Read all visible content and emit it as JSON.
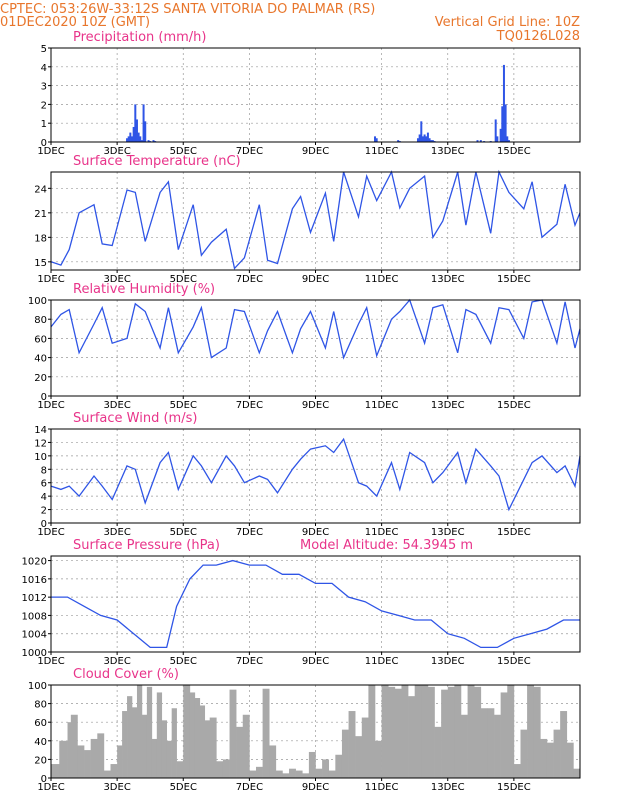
{
  "header": {
    "line1": "CPTEC:   053:26W-33:12S   SANTA VITORIA DO PALMAR (RS)",
    "date": "01DEC2020  10Z  (GMT)",
    "grid_note": "Vertical Grid Line: 10Z",
    "code": "TQ0126L028",
    "colors": {
      "header": "#e8762c",
      "panel_title": "#e8348a",
      "line": "#2f55e6",
      "cloud": "#a9a9a9"
    }
  },
  "chart_data": [
    {
      "type": "bar",
      "title": "Precipitation (mm/h)",
      "ylim": [
        0,
        5
      ],
      "yticks": [
        0,
        1,
        2,
        3,
        4,
        5
      ],
      "xticks": [
        "1DEC",
        "3DEC",
        "5DEC",
        "7DEC",
        "9DEC",
        "11DEC",
        "13DEC",
        "15DEC"
      ],
      "x": [
        2.3,
        2.35,
        2.4,
        2.45,
        2.5,
        2.55,
        2.6,
        2.65,
        2.7,
        2.75,
        2.8,
        2.85,
        2.95,
        3.0,
        3.1,
        3.15,
        9.8,
        9.85,
        10.5,
        10.55,
        11.1,
        11.15,
        11.2,
        11.25,
        11.3,
        11.35,
        11.4,
        11.45,
        11.5,
        11.55,
        11.6,
        12.9,
        13.0,
        13.1,
        13.3,
        13.45,
        13.5,
        13.6,
        13.65,
        13.7,
        13.75,
        13.8,
        13.85
      ],
      "values": [
        0.2,
        0.3,
        0.5,
        0.3,
        0.8,
        2.0,
        1.2,
        0.5,
        0.3,
        0.1,
        2.0,
        1.1,
        0.1,
        0.05,
        0.1,
        0.05,
        0.3,
        0.2,
        0.1,
        0.05,
        0.2,
        0.4,
        1.1,
        0.3,
        0.4,
        0.3,
        0.5,
        0.2,
        0.1,
        0.1,
        0.05,
        0.1,
        0.1,
        0.05,
        0.05,
        1.2,
        0.3,
        0.7,
        1.9,
        4.1,
        2.0,
        0.3,
        0.1
      ]
    },
    {
      "type": "line",
      "title": "Surface Temperature (nC)",
      "ylim": [
        14,
        26
      ],
      "yticks": [
        15,
        18,
        21,
        24
      ],
      "xticks": [
        "1DEC",
        "3DEC",
        "5DEC",
        "7DEC",
        "9DEC",
        "11DEC",
        "13DEC",
        "15DEC"
      ],
      "x": [
        0,
        0.3,
        0.55,
        0.85,
        1.3,
        1.55,
        1.85,
        2.3,
        2.55,
        2.85,
        3.3,
        3.55,
        3.85,
        4.3,
        4.55,
        4.85,
        5.3,
        5.55,
        5.85,
        6.3,
        6.55,
        6.85,
        7.3,
        7.55,
        7.85,
        8.3,
        8.55,
        8.85,
        9.3,
        9.55,
        9.85,
        10.3,
        10.55,
        10.85,
        11.3,
        11.55,
        11.85,
        12.3,
        12.55,
        12.85,
        13.3,
        13.55,
        13.85,
        14.3,
        14.55,
        14.85,
        15.3,
        15.55,
        15.85,
        16.0
      ],
      "values": [
        15.0,
        14.6,
        16.5,
        21.0,
        22.0,
        17.2,
        17.0,
        23.8,
        23.5,
        17.5,
        23.5,
        24.8,
        16.5,
        22.0,
        15.8,
        17.4,
        19.0,
        14.2,
        15.5,
        22.0,
        15.2,
        14.8,
        21.5,
        23.0,
        18.6,
        23.4,
        17.5,
        26.0,
        20.5,
        25.5,
        22.5,
        26.0,
        21.6,
        24.0,
        25.5,
        18.0,
        20.0,
        26.0,
        19.5,
        26.0,
        18.5,
        26.0,
        23.5,
        21.5,
        24.8,
        18.0,
        19.6,
        24.5,
        19.5,
        21.0
      ]
    },
    {
      "type": "line",
      "title": "Relative Humidity (%)",
      "ylim": [
        0,
        100
      ],
      "yticks": [
        0,
        20,
        40,
        60,
        80,
        100
      ],
      "xticks": [
        "1DEC",
        "3DEC",
        "5DEC",
        "7DEC",
        "9DEC",
        "11DEC",
        "13DEC",
        "15DEC"
      ],
      "x": [
        0,
        0.3,
        0.55,
        0.85,
        1.3,
        1.55,
        1.85,
        2.3,
        2.55,
        2.85,
        3.3,
        3.55,
        3.85,
        4.3,
        4.55,
        4.85,
        5.3,
        5.55,
        5.85,
        6.3,
        6.55,
        6.85,
        7.3,
        7.55,
        7.85,
        8.3,
        8.55,
        8.85,
        9.3,
        9.55,
        9.85,
        10.3,
        10.55,
        10.85,
        11.3,
        11.55,
        11.85,
        12.3,
        12.55,
        12.85,
        13.3,
        13.55,
        13.85,
        14.3,
        14.55,
        14.85,
        15.3,
        15.55,
        15.85,
        16.0
      ],
      "values": [
        72,
        85,
        90,
        45,
        75,
        92,
        55,
        60,
        96,
        88,
        50,
        92,
        45,
        72,
        92,
        40,
        50,
        90,
        88,
        45,
        68,
        88,
        45,
        70,
        88,
        50,
        88,
        40,
        75,
        92,
        42,
        80,
        88,
        100,
        55,
        92,
        95,
        45,
        90,
        85,
        55,
        92,
        90,
        60,
        98,
        100,
        55,
        98,
        50,
        70
      ]
    },
    {
      "type": "line",
      "title": "Surface Wind (m/s)",
      "ylim": [
        0,
        14
      ],
      "yticks": [
        0,
        2,
        4,
        6,
        8,
        10,
        12,
        14
      ],
      "xticks": [
        "1DEC",
        "3DEC",
        "5DEC",
        "7DEC",
        "9DEC",
        "11DEC",
        "13DEC",
        "15DEC"
      ],
      "x": [
        0,
        0.3,
        0.55,
        0.85,
        1.3,
        1.55,
        1.85,
        2.3,
        2.55,
        2.85,
        3.3,
        3.55,
        3.85,
        4.3,
        4.55,
        4.85,
        5.3,
        5.55,
        5.85,
        6.3,
        6.55,
        6.85,
        7.3,
        7.55,
        7.85,
        8.3,
        8.55,
        8.85,
        9.3,
        9.55,
        9.85,
        10.3,
        10.55,
        10.85,
        11.3,
        11.55,
        11.85,
        12.3,
        12.55,
        12.85,
        13.3,
        13.55,
        13.85,
        14.3,
        14.55,
        14.85,
        15.3,
        15.55,
        15.85,
        16.0
      ],
      "values": [
        5.5,
        5.0,
        5.5,
        4.0,
        7.0,
        5.5,
        3.5,
        8.5,
        8.0,
        3.0,
        9.0,
        10.5,
        5.0,
        10.0,
        8.5,
        6.0,
        10.0,
        8.5,
        6.0,
        7.0,
        6.5,
        4.5,
        8.0,
        9.5,
        11.0,
        11.5,
        10.5,
        12.5,
        6.0,
        5.5,
        4.0,
        9.0,
        5.0,
        10.5,
        9.0,
        6.0,
        7.5,
        10.5,
        6.0,
        11.0,
        8.5,
        7.0,
        2.0,
        6.5,
        9.0,
        10.0,
        7.5,
        8.5,
        5.5,
        10.0
      ]
    },
    {
      "type": "line",
      "title": "Surface Pressure (hPa)",
      "subtitle": "Model Altitude: 54.3945  m",
      "ylim": [
        1000,
        1021
      ],
      "yticks": [
        1000,
        1004,
        1008,
        1012,
        1016,
        1020
      ],
      "xticks": [
        "1DEC",
        "3DEC",
        "5DEC",
        "7DEC",
        "9DEC",
        "11DEC",
        "13DEC",
        "15DEC"
      ],
      "x": [
        0,
        0.5,
        1.0,
        1.5,
        2.0,
        2.5,
        3.0,
        3.5,
        3.8,
        4.2,
        4.6,
        5.0,
        5.5,
        6.0,
        6.5,
        7.0,
        7.5,
        8.0,
        8.5,
        9.0,
        9.5,
        10.0,
        10.5,
        11.0,
        11.5,
        12.0,
        12.5,
        13.0,
        13.5,
        14.0,
        14.5,
        15.0,
        15.5,
        16.0
      ],
      "values": [
        1012,
        1012,
        1010,
        1008,
        1007,
        1004,
        1001,
        1001,
        1010,
        1016,
        1019,
        1019,
        1020,
        1019,
        1019,
        1017,
        1017,
        1015,
        1015,
        1012,
        1011,
        1009,
        1008,
        1007,
        1007,
        1004,
        1003,
        1001,
        1001,
        1003,
        1004,
        1005,
        1007,
        1007
      ]
    },
    {
      "type": "area",
      "title": "Cloud Cover (%)",
      "ylim": [
        0,
        100
      ],
      "yticks": [
        0,
        20,
        40,
        60,
        80,
        100
      ],
      "xticks": [
        "1DEC",
        "3DEC",
        "5DEC",
        "7DEC",
        "9DEC",
        "11DEC",
        "13DEC",
        "15DEC"
      ],
      "x": [
        0,
        0.25,
        0.5,
        0.6,
        0.8,
        1.0,
        1.2,
        1.4,
        1.6,
        1.8,
        2.0,
        2.15,
        2.3,
        2.45,
        2.6,
        2.75,
        2.9,
        3.05,
        3.2,
        3.35,
        3.5,
        3.65,
        3.8,
        4.0,
        4.2,
        4.35,
        4.5,
        4.65,
        4.8,
        5.0,
        5.2,
        5.4,
        5.6,
        5.8,
        6.0,
        6.2,
        6.4,
        6.6,
        6.8,
        7.0,
        7.2,
        7.4,
        7.6,
        7.8,
        8.0,
        8.2,
        8.4,
        8.6,
        8.8,
        9.0,
        9.2,
        9.4,
        9.6,
        9.8,
        10.0,
        10.2,
        10.4,
        10.6,
        10.8,
        11.0,
        11.2,
        11.4,
        11.6,
        11.8,
        12.0,
        12.2,
        12.4,
        12.6,
        12.8,
        13.0,
        13.2,
        13.4,
        13.6,
        13.8,
        14.0,
        14.2,
        14.4,
        14.6,
        14.8,
        15.0,
        15.2,
        15.4,
        15.6,
        15.8,
        16.0
      ],
      "values": [
        15,
        40,
        60,
        68,
        35,
        30,
        42,
        48,
        8,
        15,
        35,
        72,
        88,
        76,
        100,
        68,
        98,
        42,
        92,
        62,
        40,
        75,
        18,
        100,
        92,
        86,
        78,
        62,
        65,
        18,
        20,
        95,
        55,
        68,
        8,
        12,
        96,
        35,
        8,
        5,
        10,
        8,
        5,
        28,
        10,
        20,
        8,
        25,
        52,
        72,
        45,
        65,
        100,
        40,
        100,
        98,
        96,
        100,
        88,
        100,
        100,
        98,
        55,
        95,
        98,
        100,
        68,
        100,
        98,
        75,
        75,
        68,
        92,
        100,
        15,
        52,
        100,
        98,
        42,
        38,
        52,
        72,
        38,
        10,
        22
      ]
    }
  ]
}
